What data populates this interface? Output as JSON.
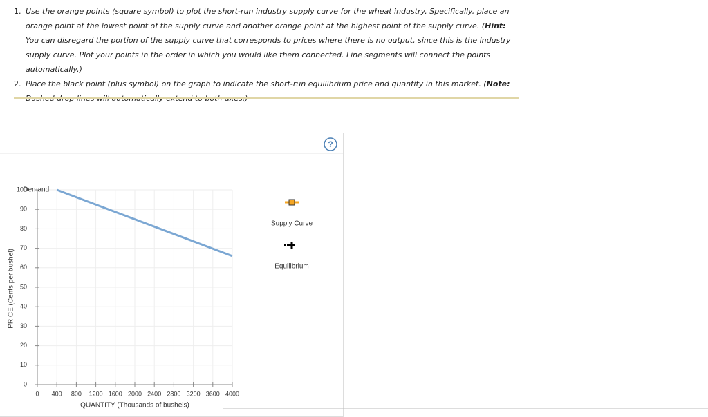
{
  "instructions": [
    {
      "number": "1.",
      "segments": [
        "Use the orange points (square symbol) to plot the short-run industry supply curve for the wheat industry. Specifically, place an orange point at the lowest point of the supply curve and another orange point at the highest point of the supply curve. (",
        "Hint:",
        " You can disregard the portion of the supply curve that corresponds to prices where there is no output, since this is the industry supply curve. Plot your points in the order in which you would like them connected. Line segments will connect the points automatically.)"
      ]
    },
    {
      "number": "2.",
      "segments": [
        "Place the black point (plus symbol) on the graph to indicate the short-run equilibrium price and quantity in this market. (",
        "Note:",
        " Dashed drop lines will automatically extend to both axes.)"
      ]
    }
  ],
  "help": "?",
  "chart_data": {
    "type": "line",
    "x_label": "QUANTITY (Thousands of bushels)",
    "y_label": "PRICE (Cents per bushel)",
    "xlim": [
      0,
      4000
    ],
    "xticks": [
      0,
      400,
      800,
      1200,
      1600,
      2000,
      2400,
      2800,
      3200,
      3600,
      4000
    ],
    "ylim": [
      0,
      100
    ],
    "yticks": [
      0,
      10,
      20,
      30,
      40,
      50,
      60,
      70,
      80,
      90,
      100
    ],
    "grid": true,
    "series": [
      {
        "name": "Demand",
        "color": "#7ba7d3",
        "x": [
          400,
          4000
        ],
        "values": [
          100,
          66
        ]
      }
    ],
    "tools": [
      {
        "name": "Supply Curve",
        "color": "#f5a623",
        "symbol": "square"
      },
      {
        "name": "Equilibrium",
        "color": "#000000",
        "symbol": "plus"
      }
    ]
  }
}
